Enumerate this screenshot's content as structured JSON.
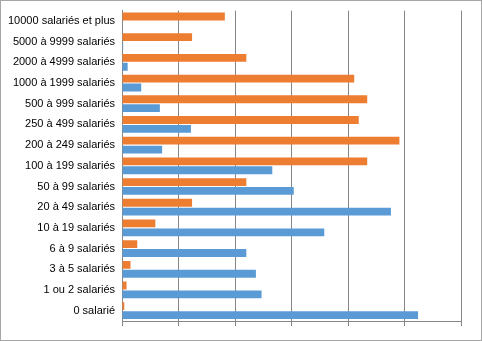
{
  "chart_data": {
    "type": "bar",
    "orientation": "horizontal",
    "grid": true,
    "tick_labels": "y",
    "categories": [
      "10000 salariés et plus",
      "5000 à 9999 salariés",
      "2000 à 4999 salariés",
      "1000 à 1999 salariés",
      "500 à 999 salariés",
      "250 à 499 salariés",
      "200 à 249 salariés",
      "100 à 199 salariés",
      "50 à 99 salariés",
      "20 à 49 salariés",
      "10 à 19 salariés",
      "6 à 9 salariés",
      "3 à 5 salariés",
      "1 ou 2 salariés",
      "0 salarié"
    ],
    "series": [
      {
        "color": "#ed7d31",
        "values": [
          1.82,
          1.24,
          2.2,
          4.11,
          4.34,
          4.19,
          4.91,
          4.34,
          2.2,
          1.24,
          0.59,
          0.27,
          0.15,
          0.08,
          0.04
        ]
      },
      {
        "color": "#5b9bd5",
        "values": [
          0,
          0.02,
          0.1,
          0.34,
          0.67,
          1.22,
          0.71,
          2.66,
          3.04,
          4.76,
          3.58,
          2.2,
          2.37,
          2.47,
          5.24
        ]
      }
    ],
    "xlim": [
      0,
      6
    ],
    "xticks": [
      0,
      1,
      2,
      3,
      4,
      5,
      6
    ]
  }
}
